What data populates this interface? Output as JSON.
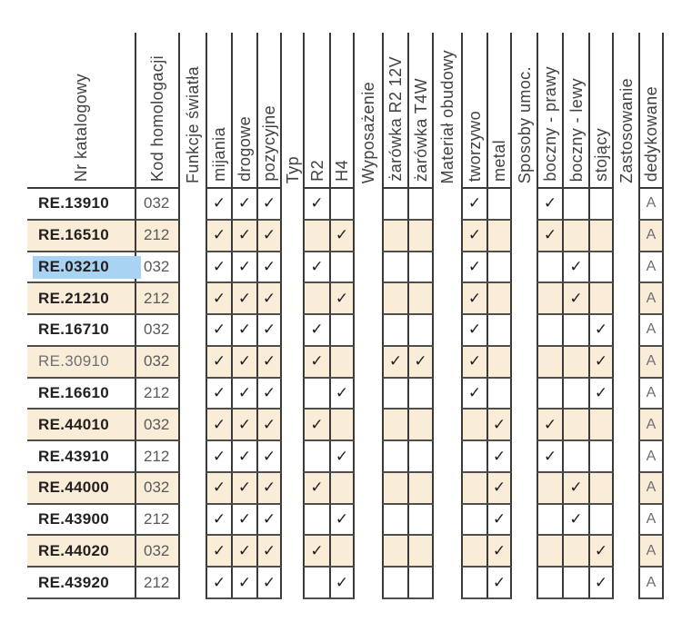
{
  "table": {
    "headers": {
      "catalog": "Nr katalogowy",
      "kod": "Kod homologacji",
      "funkcje": "Funkcje światła",
      "mijania": "mijania",
      "drogowe": "drogowe",
      "pozycyjne": "pozycyjne",
      "typ": "Typ",
      "r2": "R2",
      "h4": "H4",
      "wyposazenie": "Wyposażenie",
      "zarowka_r2": "żarówka R2 12V",
      "zarowka_t4w": "żarówka T4W",
      "material": "Materiał obudowy",
      "tworzywo": "tworzywo",
      "metal": "metal",
      "sposoby": "Sposoby umoc.",
      "boczny_prawy": "boczny - prawy",
      "boczny_lewy": "boczny - lewy",
      "stojacy": "stojący",
      "zastosowanie": "Zastosowanie",
      "dedykowane": "dedykowane"
    },
    "check_glyph": "✓",
    "rows": [
      {
        "catalog": "RE.13910",
        "kod": "032",
        "checks": [
          1,
          1,
          1,
          1,
          0,
          0,
          0,
          1,
          0,
          1,
          0,
          0
        ],
        "dedykowane": "A",
        "muted": false,
        "selected": false
      },
      {
        "catalog": "RE.16510",
        "kod": "212",
        "checks": [
          1,
          1,
          1,
          0,
          1,
          0,
          0,
          1,
          0,
          1,
          0,
          0
        ],
        "dedykowane": "A",
        "muted": false,
        "selected": false
      },
      {
        "catalog": "RE.03210",
        "kod": "032",
        "checks": [
          1,
          1,
          1,
          1,
          0,
          0,
          0,
          1,
          0,
          0,
          1,
          0
        ],
        "dedykowane": "A",
        "muted": false,
        "selected": true
      },
      {
        "catalog": "RE.21210",
        "kod": "212",
        "checks": [
          1,
          1,
          1,
          0,
          1,
          0,
          0,
          1,
          0,
          0,
          1,
          0
        ],
        "dedykowane": "A",
        "muted": false,
        "selected": false
      },
      {
        "catalog": "RE.16710",
        "kod": "032",
        "checks": [
          1,
          1,
          1,
          1,
          0,
          0,
          0,
          1,
          0,
          0,
          0,
          1
        ],
        "dedykowane": "A",
        "muted": false,
        "selected": false
      },
      {
        "catalog": "RE.30910",
        "kod": "032",
        "checks": [
          1,
          1,
          1,
          1,
          0,
          1,
          1,
          1,
          0,
          0,
          0,
          1
        ],
        "dedykowane": "A",
        "muted": true,
        "selected": false
      },
      {
        "catalog": "RE.16610",
        "kod": "212",
        "checks": [
          1,
          1,
          1,
          0,
          1,
          0,
          0,
          1,
          0,
          0,
          0,
          1
        ],
        "dedykowane": "A",
        "muted": false,
        "selected": false
      },
      {
        "catalog": "RE.44010",
        "kod": "032",
        "checks": [
          1,
          1,
          1,
          1,
          0,
          0,
          0,
          0,
          1,
          1,
          0,
          0
        ],
        "dedykowane": "A",
        "muted": false,
        "selected": false
      },
      {
        "catalog": "RE.43910",
        "kod": "212",
        "checks": [
          1,
          1,
          1,
          0,
          1,
          0,
          0,
          0,
          1,
          1,
          0,
          0
        ],
        "dedykowane": "A",
        "muted": false,
        "selected": false
      },
      {
        "catalog": "RE.44000",
        "kod": "032",
        "checks": [
          1,
          1,
          1,
          1,
          0,
          0,
          0,
          0,
          1,
          0,
          1,
          0
        ],
        "dedykowane": "A",
        "muted": false,
        "selected": false
      },
      {
        "catalog": "RE.43900",
        "kod": "212",
        "checks": [
          1,
          1,
          1,
          0,
          1,
          0,
          0,
          0,
          1,
          0,
          1,
          0
        ],
        "dedykowane": "A",
        "muted": false,
        "selected": false
      },
      {
        "catalog": "RE.44020",
        "kod": "032",
        "checks": [
          1,
          1,
          1,
          1,
          0,
          0,
          0,
          0,
          1,
          0,
          0,
          1
        ],
        "dedykowane": "A",
        "muted": false,
        "selected": false
      },
      {
        "catalog": "RE.43920",
        "kod": "212",
        "checks": [
          1,
          1,
          1,
          0,
          1,
          0,
          0,
          0,
          1,
          0,
          0,
          1
        ],
        "dedykowane": "A",
        "muted": false,
        "selected": false
      }
    ]
  },
  "colors": {
    "row_alt": "#faedd8",
    "selection": "#a8d3f2",
    "vertical_line": "#3a3a3a",
    "horizontal_line": "#4f4f4f",
    "header_text": "#414042",
    "text_dark": "#231f20",
    "text_gray": "#58595b",
    "text_muted": "#6e6f72",
    "text_a": "#6d6e71"
  }
}
